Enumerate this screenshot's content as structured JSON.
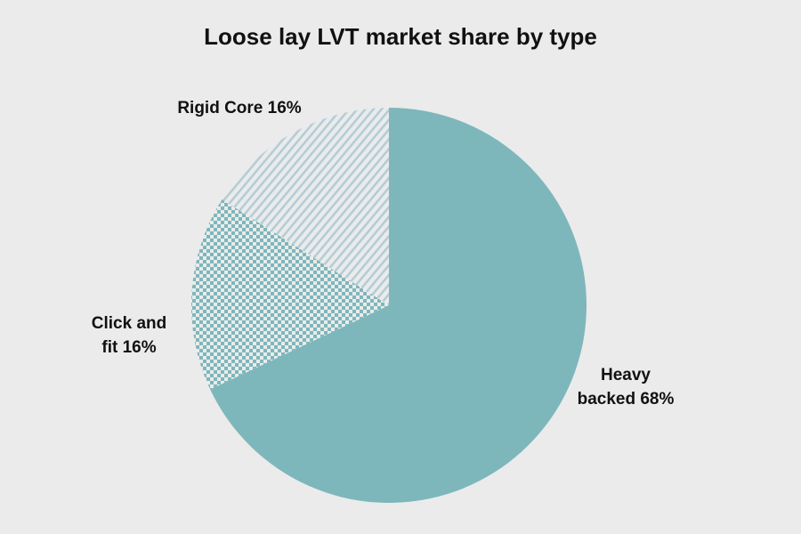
{
  "chart_data": {
    "type": "pie",
    "title": "Loose lay LVT market share by type",
    "unit": "%",
    "slices": [
      {
        "name": "Heavy backed",
        "value": 68,
        "label_lines": [
          "Heavy",
          "backed 68%"
        ],
        "fill": "solid",
        "color": "#7db7bb"
      },
      {
        "name": "Click and fit",
        "value": 16,
        "label_lines": [
          "Click and",
          "fit 16%"
        ],
        "fill": "checker",
        "color": "#7db7bb"
      },
      {
        "name": "Rigid Core",
        "value": 16,
        "label_lines": [
          "Rigid Core 16%"
        ],
        "fill": "diagonal-stripes",
        "color": "#b4cdd6"
      }
    ],
    "start_angle": "12 o'clock",
    "direction": "clockwise",
    "legend": "none",
    "background": "#ebebeb"
  }
}
